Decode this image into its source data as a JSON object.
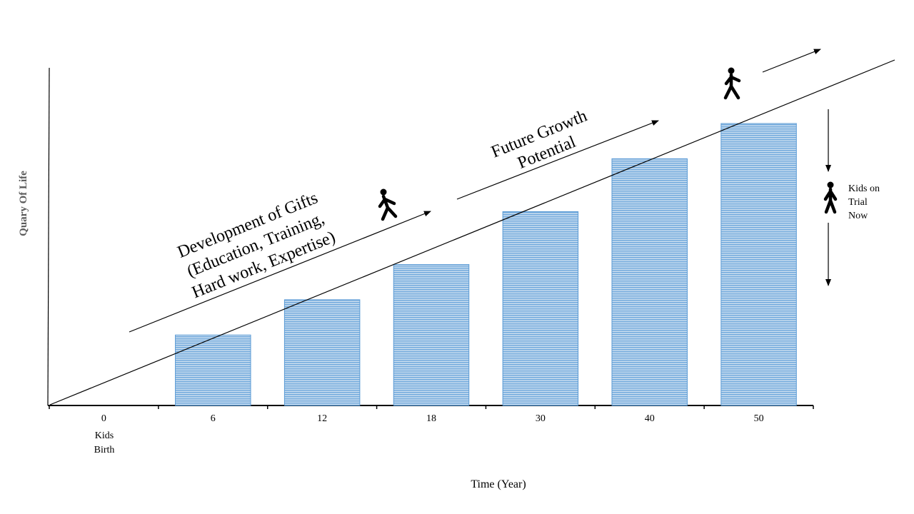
{
  "chart_data": {
    "type": "bar",
    "categories": [
      "0",
      "6",
      "12",
      "18",
      "30",
      "40",
      "50"
    ],
    "values": [
      0,
      20,
      30,
      40,
      55,
      70,
      80
    ],
    "xlabel": "Time (Year)",
    "ylabel": "Quary Of Life",
    "category_note": "Kids\nBirth",
    "bar_color": "#9dc3e6",
    "bar_stroke": "#5b9bd5",
    "annotations": {
      "development": [
        "Development of Gifts",
        "(Education, Training,",
        "Hard work, Expertise)"
      ],
      "future": [
        "Future Growth",
        "Potential"
      ],
      "trial": [
        "Kids on",
        "Trial",
        "Now"
      ]
    },
    "icons": [
      "walking-person-icon",
      "walking-person-icon",
      "walking-person-icon",
      "standing-person-icon"
    ]
  }
}
